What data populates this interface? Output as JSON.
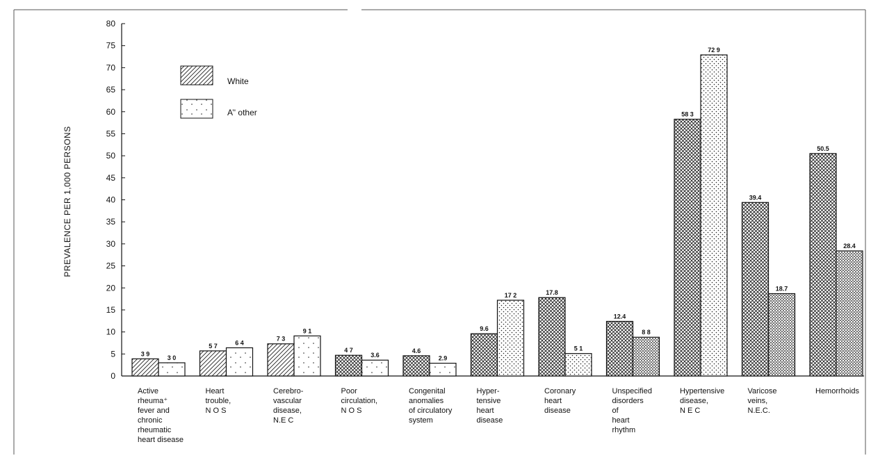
{
  "chart_data": {
    "type": "bar",
    "ylabel": "PREVALENCE PER 1,000 PERSONS",
    "ylim": [
      0,
      80
    ],
    "yticks": [
      "0",
      "5",
      "10",
      "15",
      "20",
      "25",
      "30",
      "35",
      "40",
      "45",
      "50",
      "55",
      "60",
      "65",
      "70",
      "75",
      "80"
    ],
    "legend_position": "top-left",
    "categories": [
      [
        "Active",
        "rheuma⁺",
        "fever and",
        "chronic",
        "rheumatic",
        "heart disease"
      ],
      [
        "Heart",
        "trouble,",
        "N O S"
      ],
      [
        "Cerebro-",
        "vascular",
        "disease,",
        "N.E C"
      ],
      [
        "Poor",
        "circulation,",
        "N O S"
      ],
      [
        "Congenital",
        "anomalies",
        "of circulatory",
        "system"
      ],
      [
        "Hyper-",
        "tensive",
        "heart",
        "disease"
      ],
      [
        "Coronary",
        "heart",
        "disease"
      ],
      [
        "Unspecified",
        "disorders",
        "of",
        "heart",
        "rhythm"
      ],
      [
        "Hypertensive",
        "disease,",
        "N E C"
      ],
      [
        "Varicose",
        "veins,",
        "N.E.C."
      ],
      [
        "Hemorrhoids"
      ]
    ],
    "series": [
      {
        "name": "White",
        "values": [
          3.9,
          5.7,
          7.3,
          4.7,
          4.6,
          9.6,
          17.8,
          12.4,
          58.3,
          39.4,
          50.5
        ],
        "labels": [
          "3 9",
          "5 7",
          "7 3",
          "4 7",
          "4.6",
          "9.6",
          "17.8",
          "12.4",
          "58 3",
          "39.4",
          "50.5"
        ]
      },
      {
        "name": "A’' other",
        "values": [
          3.0,
          6.4,
          9.1,
          3.6,
          2.9,
          17.2,
          5.1,
          8.8,
          72.9,
          18.7,
          28.4
        ],
        "labels": [
          "3 0",
          "6 4",
          "9 1",
          "3.6",
          "2.9",
          "17 2",
          "5 1",
          "8 8",
          "72 9",
          "18.7",
          "28.4"
        ]
      }
    ]
  }
}
